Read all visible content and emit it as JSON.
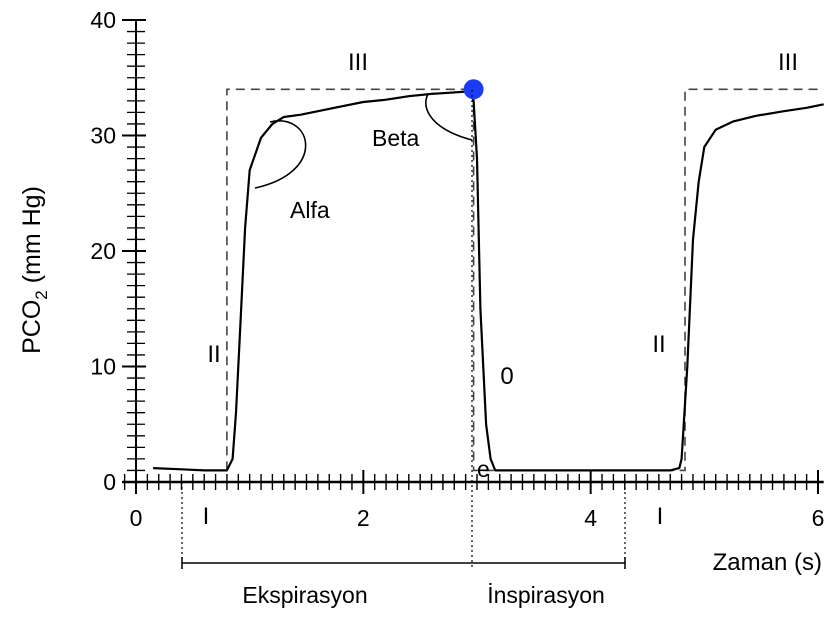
{
  "chart_data": {
    "type": "line",
    "ylabel_main": "PCO",
    "ylabel_sub": "2",
    "ylabel_unit": " (mm Hg)",
    "xlabel": "Zaman (s)",
    "xlim": [
      -0.12,
      6.05
    ],
    "ylim": [
      0,
      40
    ],
    "xticks": [
      0,
      2,
      4,
      6
    ],
    "yticks": [
      0,
      10,
      20,
      30,
      40
    ],
    "series": [
      {
        "x": [
          0.15,
          0.4,
          0.6,
          0.8,
          0.85,
          0.88,
          0.92,
          0.96,
          1.0,
          1.1,
          1.2,
          1.3,
          1.45,
          1.6,
          1.8,
          2.0,
          2.2,
          2.4,
          2.6,
          2.75,
          2.9,
          2.95,
          2.97,
          3.0,
          3.03,
          3.08,
          3.12,
          3.16,
          3.3,
          3.6,
          4.0,
          4.4,
          4.7,
          4.78,
          4.8,
          4.85,
          4.9,
          4.95,
          5.0,
          5.1,
          5.25,
          5.45,
          5.7,
          5.9,
          6.05
        ],
        "y": [
          1.2,
          1.1,
          1.0,
          1.0,
          2.0,
          6.0,
          14.0,
          22.0,
          27.0,
          29.8,
          31.0,
          31.6,
          31.8,
          32.1,
          32.5,
          32.9,
          33.1,
          33.4,
          33.6,
          33.7,
          33.8,
          33.9,
          33.0,
          28.0,
          15.0,
          5.0,
          2.0,
          1.0,
          1.0,
          1.0,
          1.0,
          1.0,
          1.0,
          1.2,
          2.0,
          10.0,
          21.0,
          26.0,
          29.0,
          30.5,
          31.2,
          31.7,
          32.1,
          32.4,
          32.7
        ]
      }
    ],
    "ideal_dashed": {
      "x": [
        0.8,
        0.8,
        2.97,
        2.97,
        4.83,
        4.83,
        6.05
      ],
      "y": [
        1.0,
        34.0,
        34.0,
        1.0,
        1.0,
        34.0,
        34.0
      ]
    },
    "marker_point": {
      "x": 2.97,
      "y": 34.0,
      "color": "#1a3cf5"
    },
    "phase_labels": [
      "III",
      "III",
      "II",
      "II",
      "I",
      "I",
      "0"
    ],
    "angle_labels": {
      "alpha": "Alfa",
      "beta": "Beta",
      "e": "e"
    },
    "span_labels": {
      "expiration": "Ekspirasyon",
      "inspiration": "İnspirasyon"
    },
    "grid": false
  }
}
